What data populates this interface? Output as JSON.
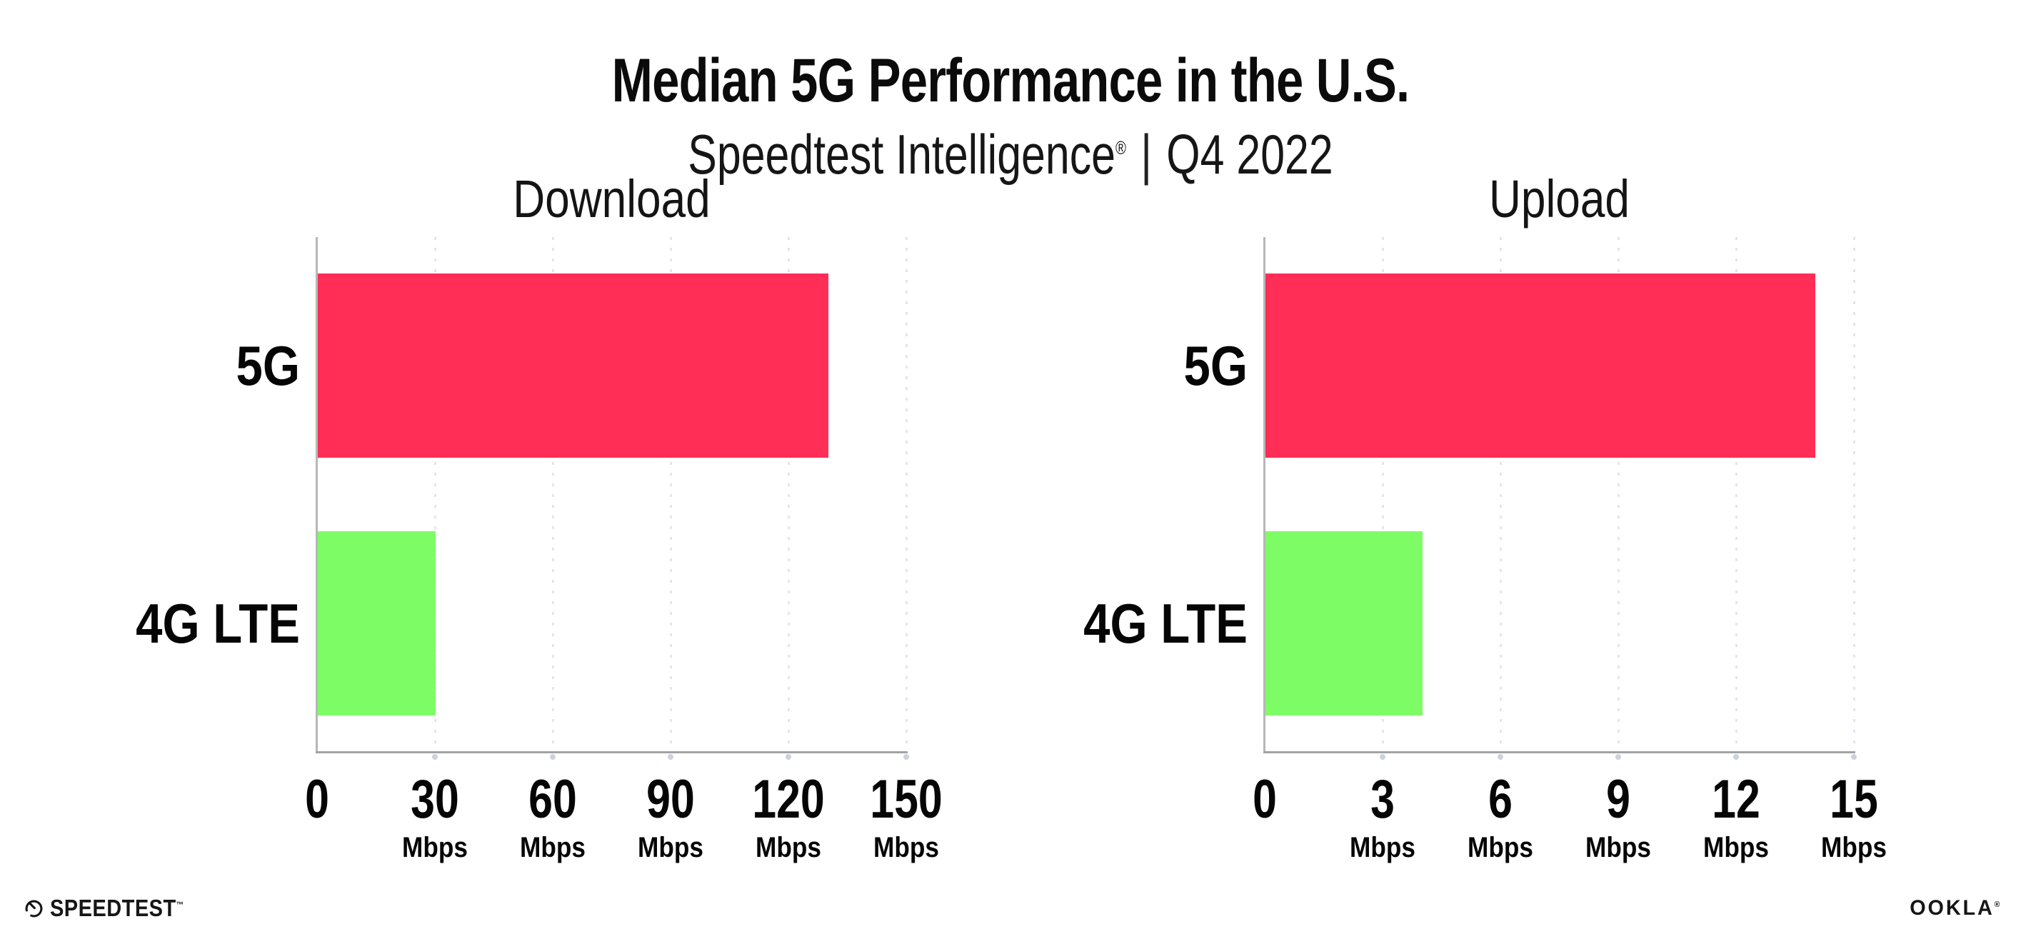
{
  "page": {
    "title": "Median 5G Performance in the U.S.",
    "subtitle_brand": "Speedtest Intelligence",
    "subtitle_reg": "®",
    "subtitle_divider": "|",
    "subtitle_period": "Q4 2022"
  },
  "footer": {
    "speedtest_wordmark": "SPEEDTEST",
    "speedtest_trademark": "™",
    "ookla_wordmark": "OOKLA",
    "ookla_trademark": "®"
  },
  "colors": {
    "bar_5g": "#FF2E56",
    "bar_4g_lte": "#7DFC66",
    "gridline": "#E3E5EF",
    "axis": "#A3A3A3",
    "tick_dot": "#CCD1DE",
    "text": "#0B0B0B"
  },
  "chart_data": [
    {
      "type": "bar",
      "orientation": "horizontal",
      "title": "Download",
      "categories": [
        "5G",
        "4G LTE"
      ],
      "values": [
        130,
        30
      ],
      "unit": "Mbps",
      "xlim": [
        0,
        150
      ],
      "xticks": [
        0,
        30,
        60,
        90,
        120,
        150
      ],
      "tick_unit_label": "Mbps",
      "bar_colors": [
        "#FF2E56",
        "#7DFC66"
      ],
      "grid": "vertical-dotted",
      "legend": "none"
    },
    {
      "type": "bar",
      "orientation": "horizontal",
      "title": "Upload",
      "categories": [
        "5G",
        "4G LTE"
      ],
      "values": [
        14,
        4
      ],
      "unit": "Mbps",
      "xlim": [
        0,
        15
      ],
      "xticks": [
        0,
        3,
        6,
        9,
        12,
        15
      ],
      "tick_unit_label": "Mbps",
      "bar_colors": [
        "#FF2E56",
        "#7DFC66"
      ],
      "grid": "vertical-dotted",
      "legend": "none"
    }
  ]
}
